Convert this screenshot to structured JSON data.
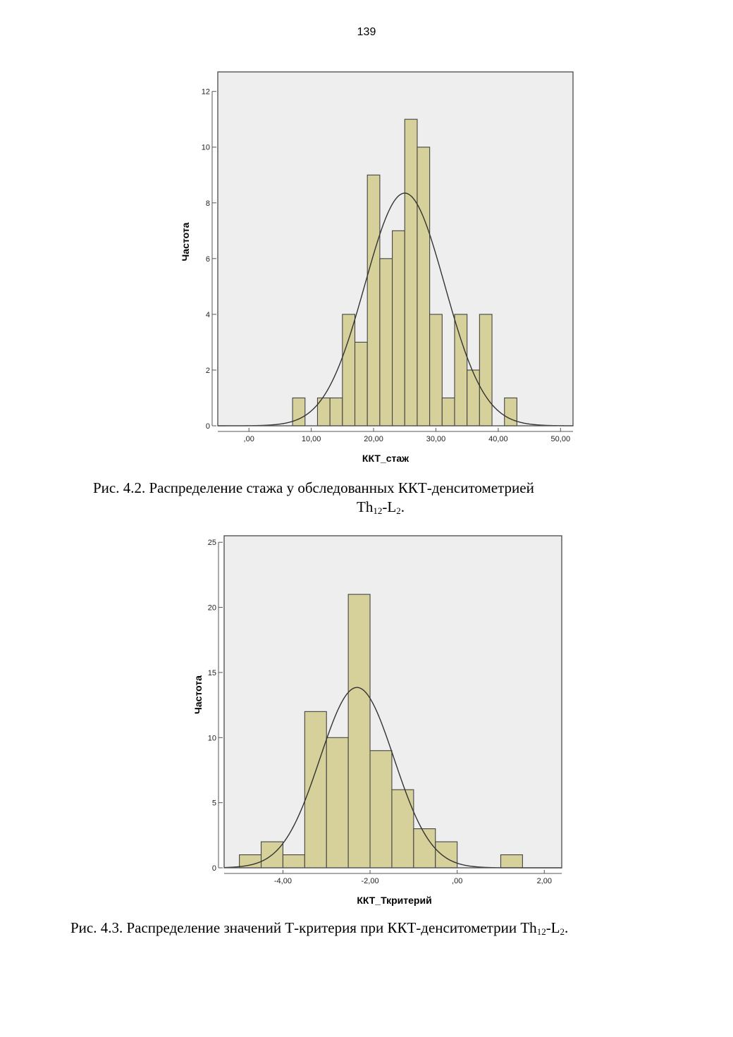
{
  "page": {
    "number": "139"
  },
  "chart_data": [
    {
      "type": "bar",
      "subtype": "histogram",
      "title": "",
      "xlabel": "ККТ_стаж",
      "ylabel": "Частота",
      "xlim": [
        -5,
        52
      ],
      "ylim": [
        0,
        12.7
      ],
      "x_ticks": [
        0,
        10,
        20,
        30,
        40,
        50
      ],
      "x_tick_labels": [
        ",00",
        "10,00",
        "20,00",
        "30,00",
        "40,00",
        "50,00"
      ],
      "y_ticks": [
        0,
        2,
        4,
        6,
        8,
        10,
        12
      ],
      "y_tick_labels": [
        "0",
        "2",
        "4",
        "6",
        "8",
        "10",
        "12"
      ],
      "bin_width": 2,
      "bin_starts": [
        7,
        9,
        11,
        13,
        15,
        17,
        19,
        21,
        23,
        25,
        27,
        29,
        31,
        33,
        35,
        37,
        39,
        41
      ],
      "values": [
        1,
        0,
        1,
        1,
        4,
        3,
        9,
        6,
        7,
        11,
        10,
        4,
        1,
        4,
        2,
        4,
        0,
        1
      ],
      "normal_curve": {
        "mean": 25,
        "sd": 6.4,
        "peak": 8.35
      },
      "bar_color": "#d6d09a",
      "background_color": "#eeeeee",
      "grid": false,
      "legend": "none"
    },
    {
      "type": "bar",
      "subtype": "histogram",
      "title": "",
      "xlabel": "ККТ_Ткритерий",
      "ylabel": "Частота",
      "xlim": [
        -5.35,
        2.4
      ],
      "ylim": [
        0,
        25.5
      ],
      "x_ticks": [
        -4,
        -2,
        0,
        2
      ],
      "x_tick_labels": [
        "-4,00",
        "-2,00",
        ",00",
        "2,00"
      ],
      "y_ticks": [
        0,
        5,
        10,
        15,
        20,
        25
      ],
      "y_tick_labels": [
        "0",
        "5",
        "10",
        "15",
        "20",
        "25"
      ],
      "bin_width": 0.5,
      "bin_starts": [
        -5,
        -4.5,
        -4,
        -3.5,
        -3,
        -2.5,
        -2,
        -1.5,
        -1,
        -0.5,
        0,
        0.5,
        1
      ],
      "values": [
        1,
        2,
        1,
        12,
        10,
        21,
        9,
        6,
        3,
        2,
        0,
        0,
        1
      ],
      "normal_curve": {
        "mean": -2.3,
        "sd": 0.85,
        "peak": 13.85
      },
      "bar_color": "#d6d09a",
      "background_color": "#eeeeee",
      "grid": false,
      "legend": "none"
    }
  ],
  "captions": [
    {
      "line1": "Рис. 4.2. Распределение стажа у обследованных ККТ-денситометрией",
      "line2_main": "Th",
      "line2_sub1": "12",
      "line2_mid": "-L",
      "line2_sub2": "2",
      "line2_end": "."
    },
    {
      "main": "Рис. 4.3. Распределение значений Т-критерия при ККТ-денситометрии Th",
      "sub1": "12",
      "mid": "-L",
      "sub2": "2",
      "end": "."
    }
  ]
}
